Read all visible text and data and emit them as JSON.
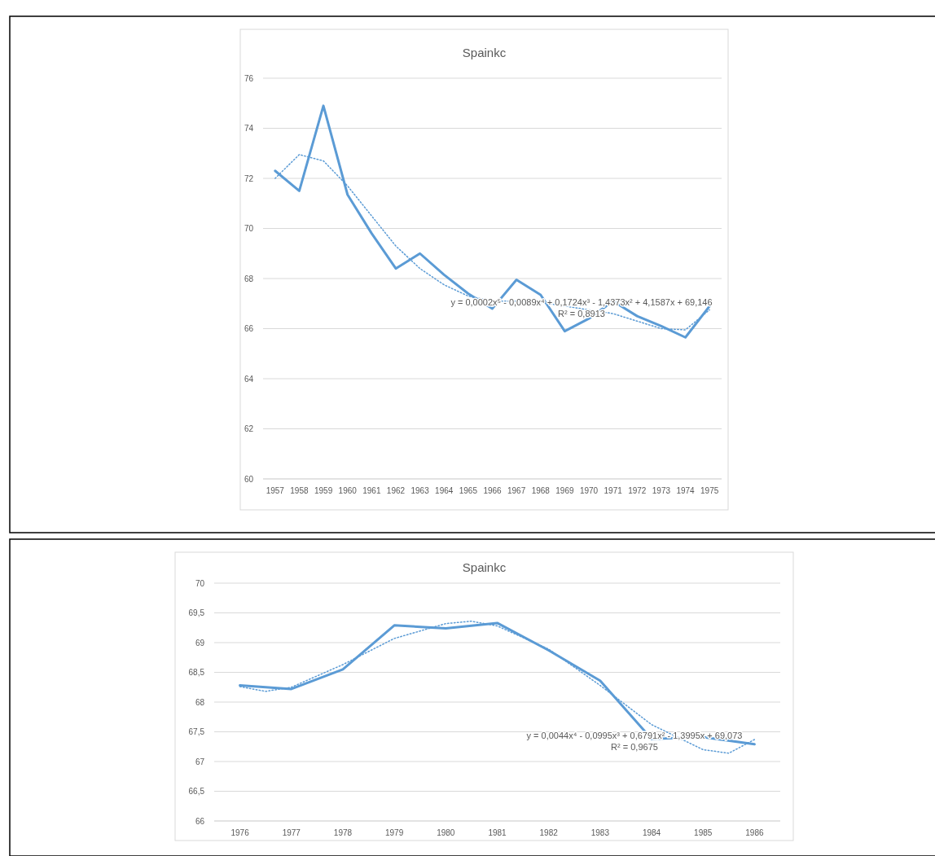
{
  "chart_data": [
    {
      "type": "line",
      "title": "Spainkc",
      "x": [
        1957,
        1958,
        1959,
        1960,
        1961,
        1962,
        1963,
        1964,
        1965,
        1966,
        1967,
        1968,
        1969,
        1970,
        1971,
        1972,
        1973,
        1974,
        1975
      ],
      "xlim": [
        1956.5,
        1975.5
      ],
      "xticks": [
        1957,
        1958,
        1959,
        1960,
        1961,
        1962,
        1963,
        1964,
        1965,
        1966,
        1967,
        1968,
        1969,
        1970,
        1971,
        1972,
        1973,
        1974,
        1975
      ],
      "ylim": [
        60,
        76
      ],
      "yticks": [
        60,
        62,
        64,
        66,
        68,
        70,
        72,
        74,
        76
      ],
      "grid": "y",
      "series": [
        {
          "color": "#5b9bd5",
          "line_style": "solid",
          "values": [
            72.3,
            71.5,
            74.9,
            71.35,
            69.8,
            68.4,
            69.0,
            68.15,
            67.4,
            66.8,
            67.95,
            67.35,
            65.9,
            66.4,
            67.1,
            66.5,
            66.1,
            65.65,
            66.9
          ]
        },
        {
          "type": "line",
          "color": "#5b9bd5",
          "line_style": "dotted",
          "x": [
            1957,
            1958,
            1959,
            1960,
            1961,
            1962,
            1963,
            1964,
            1965,
            1966,
            1967,
            1968,
            1969,
            1970,
            1971,
            1972,
            1973,
            1974,
            1975
          ],
          "values": [
            72.0,
            72.95,
            72.7,
            71.7,
            70.5,
            69.3,
            68.4,
            67.75,
            67.3,
            67.1,
            67.1,
            67.05,
            66.9,
            66.75,
            66.6,
            66.3,
            66.0,
            65.95,
            66.75
          ]
        }
      ],
      "annotations": [
        "y = 0,0002x⁵ - 0,0089x⁴ + 0,1724x³ - 1,4373x² + 4,1587x + 69,146",
        "R² = 0,8913"
      ]
    },
    {
      "type": "line",
      "title": "Spainkc",
      "x": [
        1976,
        1977,
        1978,
        1979,
        1980,
        1981,
        1982,
        1983,
        1984,
        1985,
        1986
      ],
      "xlim": [
        1975.5,
        1986.5
      ],
      "xticks": [
        1976,
        1977,
        1978,
        1979,
        1980,
        1981,
        1982,
        1983,
        1984,
        1985,
        1986
      ],
      "ylim": [
        66,
        70
      ],
      "yticks": [
        66,
        {
          "value": 66.5,
          "label": "66,5"
        },
        67,
        {
          "value": 67.5,
          "label": "67,5"
        },
        68,
        {
          "value": 68.5,
          "label": "68,5"
        },
        69,
        {
          "value": 69.5,
          "label": "69,5"
        },
        70
      ],
      "grid": "y",
      "series": [
        {
          "color": "#5b9bd5",
          "line_style": "solid",
          "values": [
            68.28,
            68.22,
            68.55,
            69.29,
            69.24,
            69.33,
            68.87,
            68.36,
            67.38,
            67.41,
            67.29
          ]
        },
        {
          "type": "line",
          "color": "#5b9bd5",
          "line_style": "dotted",
          "x": [
            1976,
            1976.5,
            1977,
            1978,
            1979,
            1980,
            1980.5,
            1981,
            1982,
            1983,
            1984,
            1985,
            1985.5,
            1986
          ],
          "values": [
            68.26,
            68.18,
            68.25,
            68.63,
            69.07,
            69.32,
            69.36,
            69.28,
            68.89,
            68.28,
            67.62,
            67.2,
            67.14,
            67.37
          ]
        }
      ],
      "annotations": [
        "y = 0,0044x⁴ - 0,0995x³ + 0,6791x² - 1,3995x + 69,073",
        "R² = 0,9675"
      ]
    }
  ]
}
